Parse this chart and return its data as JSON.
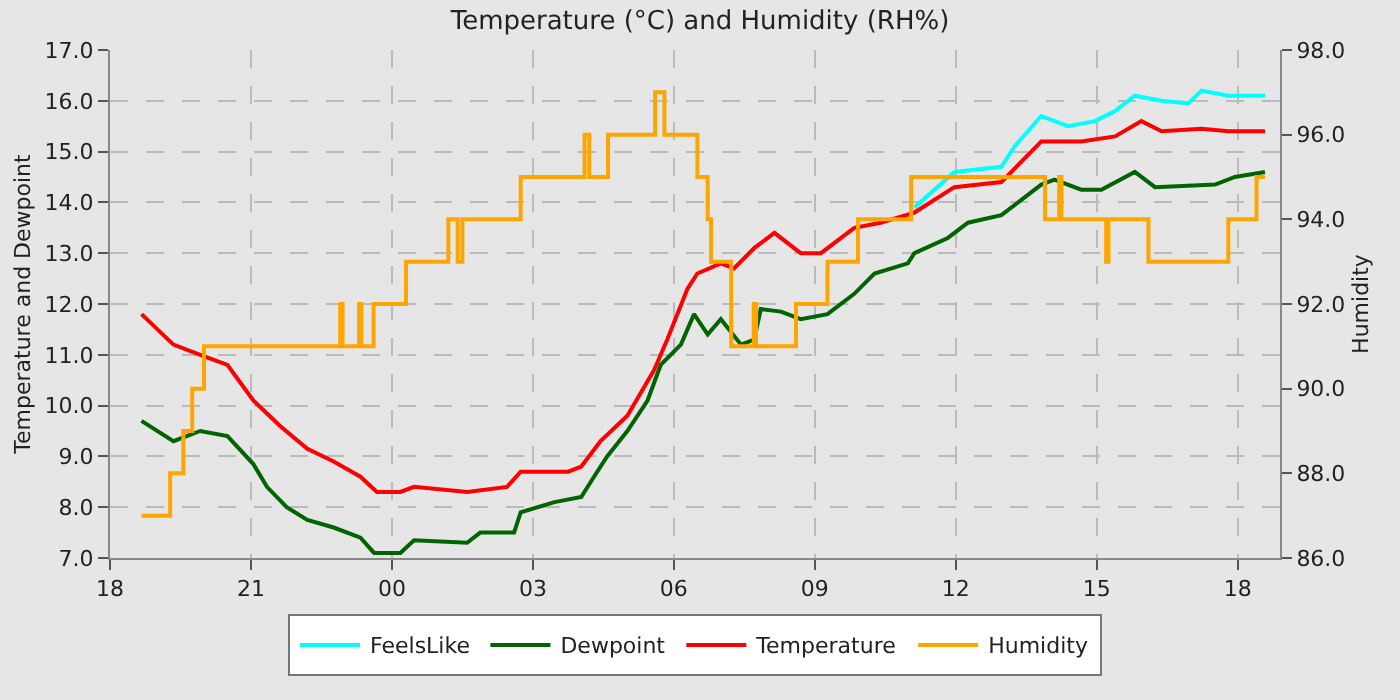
{
  "chart_data": {
    "type": "line",
    "title": "Temperature (°C) and Humidity (RH%)",
    "ylabel": "Temperature and Dewpoint",
    "y2label": "Humidity",
    "xlim": [
      18,
      42.9
    ],
    "xticks": [
      {
        "value": 18,
        "label": "18"
      },
      {
        "value": 21,
        "label": "21"
      },
      {
        "value": 24,
        "label": "00"
      },
      {
        "value": 27,
        "label": "03"
      },
      {
        "value": 30,
        "label": "06"
      },
      {
        "value": 33,
        "label": "09"
      },
      {
        "value": 36,
        "label": "12"
      },
      {
        "value": 39,
        "label": "15"
      },
      {
        "value": 42,
        "label": "18"
      }
    ],
    "ylim": [
      7,
      17
    ],
    "yticks": [
      {
        "value": 7,
        "label": "7.0"
      },
      {
        "value": 8,
        "label": "8.0"
      },
      {
        "value": 9,
        "label": "9.0"
      },
      {
        "value": 10,
        "label": "10.0"
      },
      {
        "value": 11,
        "label": "11.0"
      },
      {
        "value": 12,
        "label": "12.0"
      },
      {
        "value": 13,
        "label": "13.0"
      },
      {
        "value": 14,
        "label": "14.0"
      },
      {
        "value": 15,
        "label": "15.0"
      },
      {
        "value": 16,
        "label": "16.0"
      },
      {
        "value": 17,
        "label": "17.0"
      }
    ],
    "y2lim": [
      86,
      98
    ],
    "y2ticks": [
      {
        "value": 86,
        "label": "86.0"
      },
      {
        "value": 88,
        "label": "88.0"
      },
      {
        "value": 90,
        "label": "90.0"
      },
      {
        "value": 92,
        "label": "92.0"
      },
      {
        "value": 94,
        "label": "94.0"
      },
      {
        "value": 96,
        "label": "96.0"
      },
      {
        "value": 98,
        "label": "98.0"
      }
    ],
    "grid": true,
    "legend": "bottom",
    "line_style": "solid",
    "marker": "none",
    "series": [
      {
        "name": "FeelsLike",
        "color": "#00ffff",
        "x": [
          35.12,
          35.97,
          36.97,
          37.25,
          37.82,
          38.39,
          38.96,
          39.39,
          39.81,
          40.38,
          40.95,
          41.23,
          41.8,
          42.58
        ],
        "values": [
          13.9,
          14.6,
          14.7,
          15.1,
          15.7,
          15.5,
          15.6,
          15.8,
          16.1,
          16.0,
          15.95,
          16.2,
          16.1,
          16.1
        ]
      },
      {
        "name": "Dewpoint",
        "color": "#006400",
        "x": [
          18.67,
          19.35,
          19.92,
          20.5,
          21.05,
          21.34,
          21.76,
          22.2,
          22.76,
          23.33,
          23.62,
          24.18,
          24.47,
          25.6,
          25.88,
          26.6,
          26.74,
          27.46,
          28.03,
          28.3,
          28.58,
          29.01,
          29.44,
          29.72,
          30.15,
          30.43,
          30.72,
          31.0,
          31.43,
          31.71,
          31.85,
          32.28,
          32.7,
          33.27,
          33.84,
          34.27,
          34.98,
          35.12,
          35.83,
          36.26,
          36.97,
          37.82,
          38.1,
          38.67,
          39.1,
          39.81,
          40.24,
          41.52,
          41.94,
          42.58
        ],
        "values": [
          9.7,
          9.3,
          9.5,
          9.4,
          8.85,
          8.4,
          8.0,
          7.75,
          7.6,
          7.4,
          7.1,
          7.1,
          7.35,
          7.3,
          7.5,
          7.5,
          7.9,
          8.1,
          8.2,
          8.6,
          9.0,
          9.5,
          10.1,
          10.8,
          11.2,
          11.8,
          11.4,
          11.7,
          11.2,
          11.3,
          11.9,
          11.85,
          11.7,
          11.8,
          12.2,
          12.6,
          12.8,
          13.0,
          13.3,
          13.6,
          13.75,
          14.35,
          14.45,
          14.25,
          14.25,
          14.6,
          14.3,
          14.35,
          14.5,
          14.6
        ]
      },
      {
        "name": "Temperature",
        "color": "#ff0000",
        "x": [
          18.67,
          19.35,
          19.92,
          20.5,
          21.05,
          21.62,
          22.2,
          22.76,
          23.33,
          23.68,
          24.18,
          24.47,
          25.6,
          26.45,
          26.74,
          27.75,
          28.03,
          28.44,
          29.01,
          29.58,
          29.86,
          30.29,
          30.5,
          31.0,
          31.28,
          31.71,
          32.14,
          32.7,
          33.13,
          33.84,
          34.4,
          35.12,
          35.97,
          36.97,
          37.82,
          38.67,
          39.39,
          39.95,
          40.38,
          41.23,
          41.8,
          42.58
        ],
        "values": [
          11.8,
          11.2,
          11.0,
          10.8,
          10.1,
          9.6,
          9.15,
          8.9,
          8.6,
          8.3,
          8.3,
          8.4,
          8.3,
          8.4,
          8.7,
          8.7,
          8.8,
          9.3,
          9.8,
          10.7,
          11.3,
          12.3,
          12.6,
          12.8,
          12.7,
          13.1,
          13.4,
          13.0,
          13.0,
          13.5,
          13.6,
          13.8,
          14.3,
          14.4,
          15.2,
          15.2,
          15.3,
          15.6,
          15.4,
          15.45,
          15.4,
          15.4
        ]
      },
      {
        "name": "Humidity",
        "color": "#ffa500",
        "type": "step",
        "axis": "y2",
        "x": [
          18.67,
          19.28,
          19.56,
          19.75,
          20.0,
          22.9,
          22.95,
          23.3,
          23.35,
          23.61,
          24.3,
          25.2,
          25.4,
          25.5,
          26.74,
          28.1,
          28.2,
          28.6,
          29.6,
          29.8,
          30.5,
          30.72,
          30.79,
          31.22,
          31.7,
          31.75,
          32.6,
          33.27,
          33.92,
          35.05,
          37.9,
          38.2,
          38.25,
          39.2,
          39.25,
          40.1,
          41.8,
          42.4,
          42.58
        ],
        "values": [
          87,
          88,
          89,
          90,
          91,
          92,
          91,
          92,
          91,
          92,
          93,
          94,
          93,
          94,
          95,
          96,
          95,
          96,
          97,
          96,
          95,
          94,
          93,
          91,
          92,
          91,
          92,
          93,
          94,
          95,
          94,
          95,
          94,
          93,
          94,
          93,
          94,
          95,
          95
        ]
      }
    ]
  }
}
